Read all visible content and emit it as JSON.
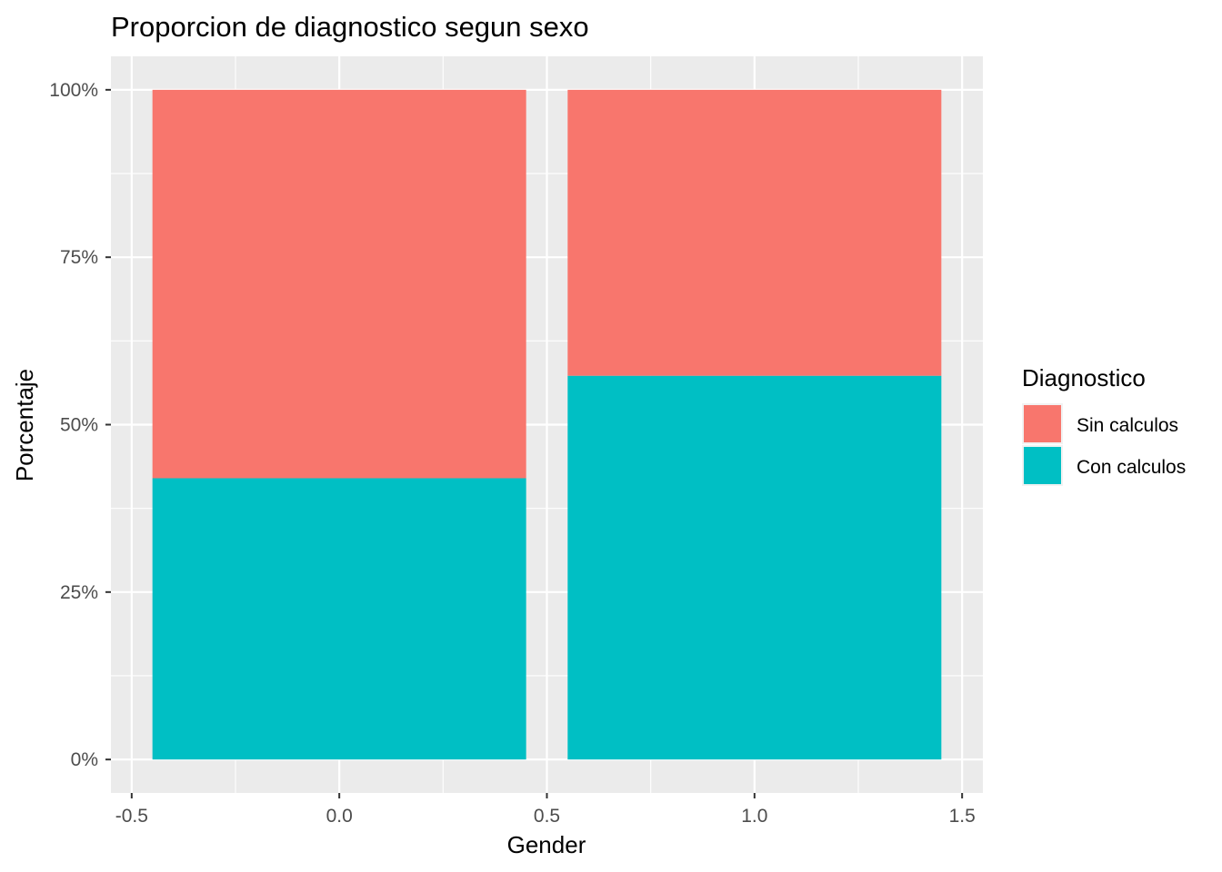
{
  "chart_data": {
    "type": "bar",
    "stacked": true,
    "normalized": true,
    "title": "Proporcion de diagnostico segun sexo",
    "xlabel": "Gender",
    "ylabel": "Porcentaje",
    "xlim": [
      -0.55,
      1.55
    ],
    "ylim": [
      -0.05,
      1.05
    ],
    "x_ticks": [
      -0.5,
      0.0,
      0.5,
      1.0,
      1.5
    ],
    "x_tick_labels": [
      "-0.5",
      "0.0",
      "0.5",
      "1.0",
      "1.5"
    ],
    "y_ticks": [
      0,
      0.25,
      0.5,
      0.75,
      1.0
    ],
    "y_tick_labels": [
      "0%",
      "25%",
      "50%",
      "75%",
      "100%"
    ],
    "x": [
      0,
      1
    ],
    "bar_width": 0.9,
    "series": [
      {
        "name": "Con calculos",
        "color": "#00BFC4",
        "values": [
          0.42,
          0.573
        ]
      },
      {
        "name": "Sin calculos",
        "color": "#F8766D",
        "values": [
          0.58,
          0.427
        ]
      }
    ],
    "legend": {
      "title": "Diagnostico",
      "position": "right",
      "entries": [
        {
          "label": "Sin calculos",
          "color": "#F8766D"
        },
        {
          "label": "Con calculos",
          "color": "#00BFC4"
        }
      ]
    },
    "grid": true,
    "panel_background": "#EBEBEB",
    "grid_color": "#FFFFFF"
  }
}
